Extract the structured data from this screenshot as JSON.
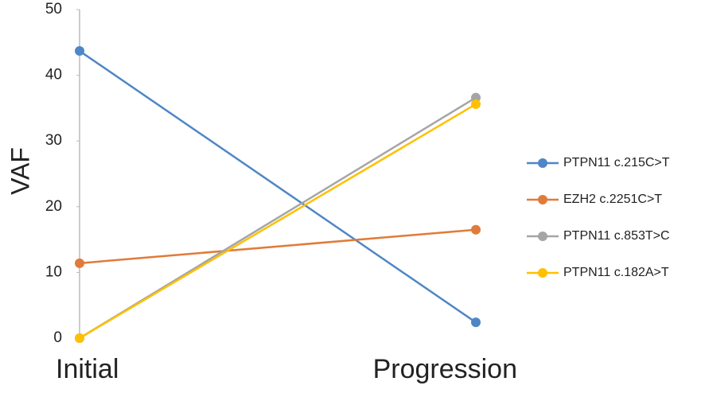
{
  "chart_data": {
    "type": "line",
    "y_label": "VAF",
    "categories": [
      "Initial",
      "Progression"
    ],
    "ylim": [
      0,
      50
    ],
    "yticks": [
      0,
      10,
      20,
      30,
      40,
      50
    ],
    "series": [
      {
        "name": "PTPN11 c.215C>T",
        "color": "#4f86c6",
        "values": [
          43.7,
          2.4
        ]
      },
      {
        "name": "EZH2 c.2251C>T",
        "color": "#e07b39",
        "values": [
          11.4,
          16.5
        ]
      },
      {
        "name": "PTPN11 c.853T>C",
        "color": "#a5a5a5",
        "values": [
          0,
          36.6
        ]
      },
      {
        "name": "PTPN11 c.182A>T",
        "color": "#ffc000",
        "values": [
          0,
          35.6
        ]
      }
    ]
  }
}
